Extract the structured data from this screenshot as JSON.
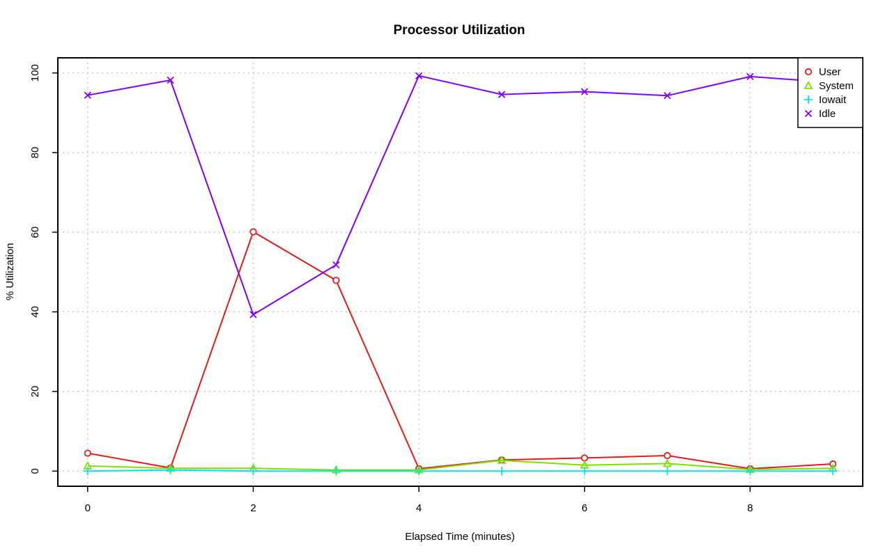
{
  "chart_data": {
    "type": "line",
    "title": "Processor Utilization",
    "xlabel": "Elapsed Time (minutes)",
    "ylabel": "% Utilization",
    "x": [
      0,
      1,
      2,
      3,
      4,
      5,
      6,
      7,
      8,
      9
    ],
    "xlim": [
      -0.36,
      9.36
    ],
    "ylim": [
      -3.8,
      103.8
    ],
    "xticks": [
      0,
      2,
      4,
      6,
      8
    ],
    "yticks": [
      0,
      20,
      40,
      60,
      80,
      100
    ],
    "grid": true,
    "legend_position": "top-right",
    "series": [
      {
        "name": "User",
        "color": "#e41a1c",
        "marker": "circle",
        "values": [
          4.5,
          0.8,
          60.1,
          47.9,
          0.6,
          2.8,
          3.3,
          3.9,
          0.6,
          1.8
        ]
      },
      {
        "name": "System",
        "color": "#7fe000",
        "marker": "triangle",
        "values": [
          1.3,
          0.7,
          0.7,
          0.3,
          0.3,
          2.7,
          1.5,
          1.9,
          0.4,
          0.7
        ]
      },
      {
        "name": "Iowait",
        "color": "#00e5ee",
        "marker": "plus",
        "values": [
          0.0,
          0.3,
          0.0,
          0.0,
          0.0,
          0.0,
          0.0,
          0.0,
          0.0,
          0.0
        ]
      },
      {
        "name": "Idle",
        "color": "#7f00ff",
        "marker": "cross",
        "values": [
          94.4,
          98.2,
          39.3,
          51.8,
          99.3,
          94.6,
          95.3,
          94.3,
          99.1,
          97.6
        ]
      }
    ]
  }
}
